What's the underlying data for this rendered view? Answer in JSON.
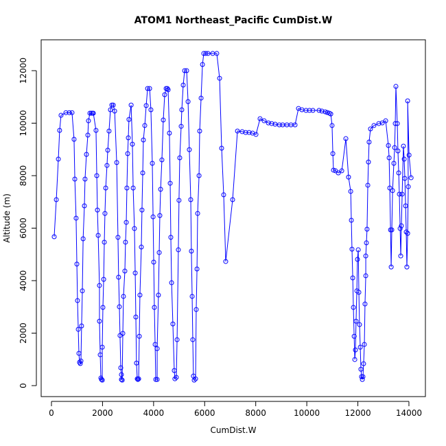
{
  "chart_data": {
    "type": "line",
    "title": "ATOM1 Northeast_Pacific CumDist.W",
    "x_label": "CumDist.W",
    "y_label": "Altitude (m)",
    "color": "#0000ff",
    "x": [
      107,
      190,
      270,
      320,
      375,
      565,
      700,
      805,
      885,
      915,
      965,
      995,
      1020,
      1050,
      1075,
      1100,
      1130,
      1155,
      1180,
      1210,
      1240,
      1290,
      1315,
      1370,
      1425,
      1450,
      1505,
      1560,
      1610,
      1640,
      1745,
      1775,
      1800,
      1830,
      1880,
      1880,
      1910,
      1935,
      1960,
      1990,
      1990,
      2015,
      2045,
      2070,
      2095,
      2125,
      2175,
      2205,
      2255,
      2310,
      2365,
      2420,
      2475,
      2555,
      2605,
      2630,
      2660,
      2685,
      2715,
      2740,
      2740,
      2770,
      2795,
      2820,
      2875,
      2900,
      2930,
      2955,
      2985,
      3010,
      3035,
      3120,
      3170,
      3200,
      3250,
      3280,
      3305,
      3330,
      3360,
      3385,
      3415,
      3440,
      3465,
      3520,
      3545,
      3575,
      3600,
      3655,
      3710,
      3765,
      3845,
      3895,
      3950,
      3980,
      4005,
      4030,
      4060,
      4085,
      4140,
      4140,
      4190,
      4220,
      4245,
      4275,
      4325,
      4380,
      4435,
      4490,
      4540,
      4570,
      4620,
      4650,
      4675,
      4705,
      4755,
      4810,
      4835,
      4890,
      4920,
      4970,
      4995,
      5025,
      5080,
      5105,
      5160,
      5215,
      5295,
      5350,
      5400,
      5455,
      5480,
      5510,
      5535,
      5560,
      5590,
      5645,
      5670,
      5700,
      5725,
      5780,
      5805,
      5860,
      5915,
      5965,
      6045,
      6130,
      6315,
      6475,
      6585,
      6665,
      6745,
      6825,
      7095,
      7285,
      7470,
      7605,
      7740,
      7875,
      8010,
      8170,
      8330,
      8495,
      8625,
      8760,
      8925,
      9055,
      9220,
      9380,
      9540,
      9675,
      9810,
      9970,
      10105,
      10240,
      10480,
      10590,
      10725,
      10805,
      10885,
      10940,
      10990,
      11020,
      11045,
      11125,
      11235,
      11370,
      11530,
      11635,
      11720,
      11745,
      11770,
      11800,
      11825,
      11855,
      11880,
      11905,
      11930,
      11960,
      11985,
      12015,
      12040,
      12065,
      12095,
      12120,
      12145,
      12175,
      12200,
      12225,
      12255,
      12280,
      12310,
      12310,
      12335,
      12360,
      12390,
      12415,
      12440,
      12495,
      12630,
      12820,
      12955,
      13090,
      13195,
      13225,
      13250,
      13280,
      13305,
      13330,
      13360,
      13410,
      13440,
      13465,
      13490,
      13545,
      13570,
      13600,
      13625,
      13655,
      13680,
      13705,
      13735,
      13785,
      13815,
      13840,
      13870,
      13895,
      13920,
      13950,
      13975,
      13950,
      14005,
      14085
    ],
    "values": [
      5673,
      7085,
      8630,
      9725,
      10300,
      10400,
      10400,
      10400,
      9385,
      7870,
      6380,
      4630,
      3240,
      2145,
      1230,
      890,
      840,
      940,
      2275,
      3610,
      5595,
      6850,
      7870,
      8810,
      9545,
      10090,
      10380,
      10380,
      10380,
      10380,
      9725,
      8000,
      6690,
      5725,
      3815,
      2455,
      1175,
      290,
      235,
      210,
      1465,
      2980,
      4050,
      5465,
      6560,
      7530,
      8390,
      8970,
      9700,
      10510,
      10690,
      10690,
      10460,
      8500,
      5650,
      4130,
      3005,
      1910,
      680,
      420,
      235,
      210,
      1990,
      3400,
      4365,
      5465,
      6220,
      7530,
      8840,
      9440,
      10140,
      10690,
      9200,
      7530,
      5985,
      4290,
      2615,
      860,
      260,
      235,
      260,
      1880,
      3450,
      5280,
      6690,
      8105,
      9360,
      9910,
      10670,
      11320,
      11320,
      10510,
      8470,
      6430,
      4705,
      2980,
      1570,
      235,
      235,
      1410,
      3450,
      5070,
      6480,
      7480,
      8600,
      10120,
      11085,
      11320,
      11320,
      11270,
      9620,
      7710,
      5650,
      3920,
      2350,
      575,
      260,
      315,
      1750,
      5175,
      7060,
      8680,
      9880,
      10510,
      11450,
      12000,
      12000,
      10820,
      8990,
      7085,
      5125,
      3400,
      1750,
      365,
      210,
      260,
      2900,
      4445,
      6560,
      8000,
      9700,
      10955,
      12235,
      12655,
      12655,
      12655,
      12655,
      12655,
      11710,
      9045,
      7270,
      4730,
      7085,
      9700,
      9675,
      9645,
      9645,
      9620,
      9570,
      10170,
      10090,
      10010,
      9985,
      9960,
      9935,
      9935,
      9935,
      9935,
      9935,
      10560,
      10510,
      10485,
      10485,
      10485,
      10485,
      10460,
      10430,
      10405,
      10380,
      10350,
      9910,
      8840,
      8210,
      8185,
      8105,
      8185,
      9410,
      7945,
      7400,
      6300,
      5200,
      4105,
      2980,
      1880,
      995,
      1360,
      2455,
      3610,
      4810,
      5175,
      3555,
      2325,
      1465,
      625,
      340,
      235,
      340,
      835,
      1570,
      3110,
      4185,
      4940,
      5440,
      5960,
      7635,
      8520,
      9280,
      9780,
      9910,
      9985,
      10010,
      10090,
      9150,
      8680,
      7530,
      5935,
      4520,
      5935,
      7430,
      8470,
      9070,
      9985,
      11400,
      9985,
      8940,
      8105,
      7295,
      5985,
      4940,
      6090,
      7295,
      9125,
      8630,
      7895,
      6850,
      5855,
      4520,
      5800,
      7580,
      10850,
      8785,
      7920
    ],
    "xlim": [
      -403,
      14646
    ],
    "ylim": [
      -418,
      13176
    ],
    "xticks": [
      0,
      2000,
      4000,
      6000,
      8000,
      10000,
      12000,
      14000
    ],
    "yticks": [
      0,
      2000,
      4000,
      6000,
      8000,
      10000,
      12000
    ]
  }
}
